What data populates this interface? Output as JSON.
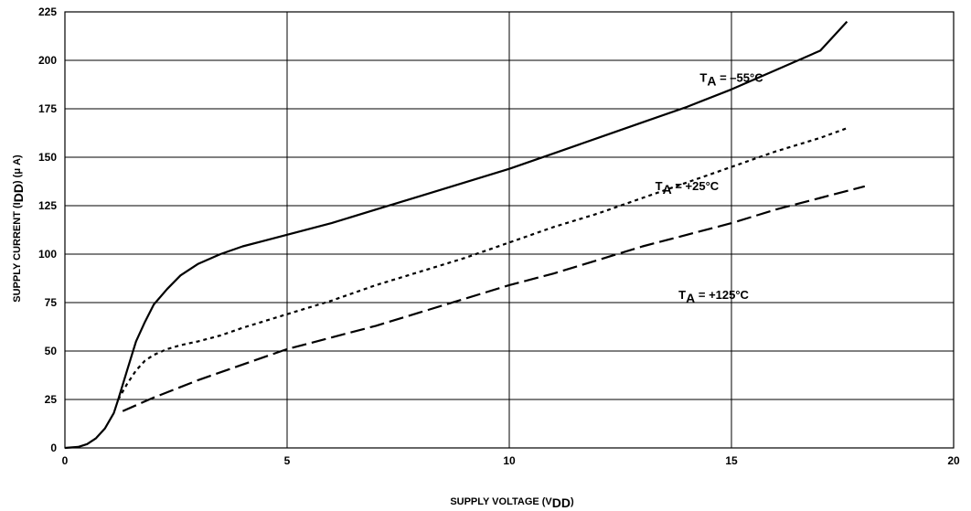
{
  "chart_data": {
    "type": "line",
    "title": "",
    "xlabel": "SUPPLY VOLTAGE (V",
    "xlabel_sub": "DD",
    "xlabel_end": ")",
    "ylabel": "SUPPLY CURRENT (I",
    "ylabel_sub": "DD",
    "ylabel_end": ") (μ A)",
    "xlim": [
      0,
      20
    ],
    "ylim": [
      0,
      225
    ],
    "xticks": [
      0,
      5,
      10,
      15,
      20
    ],
    "yticks": [
      0,
      25,
      50,
      75,
      100,
      125,
      150,
      175,
      200,
      225
    ],
    "grid": true,
    "series": [
      {
        "name": "T",
        "name_sub": "A",
        "name_end": " = –55°C",
        "style": "solid",
        "x": [
          0,
          0.3,
          0.5,
          0.7,
          0.9,
          1.0,
          1.1,
          1.2,
          1.4,
          1.6,
          1.8,
          2.0,
          2.3,
          2.6,
          3.0,
          3.5,
          4.0,
          4.5,
          5.0,
          6,
          7,
          8,
          9,
          10,
          11,
          12,
          13,
          14,
          15,
          16,
          17,
          17.6
        ],
        "y": [
          0,
          0.5,
          2,
          5,
          10,
          14,
          18,
          25,
          40,
          55,
          65,
          74,
          82,
          89,
          95,
          100,
          104,
          107,
          110,
          116,
          123,
          130,
          137,
          144,
          152,
          160,
          168,
          176,
          185,
          195,
          205,
          220
        ]
      },
      {
        "name": "T",
        "name_sub": "A",
        "name_end": " = +25°C",
        "style": "dotted",
        "x": [
          1.2,
          1.4,
          1.6,
          1.8,
          2.0,
          2.3,
          2.6,
          3.0,
          3.5,
          4,
          5,
          6,
          7,
          8,
          9,
          10,
          11,
          12,
          13,
          14,
          15,
          16,
          17,
          17.6
        ],
        "y": [
          25,
          33,
          40,
          45,
          48,
          51,
          53,
          55,
          58,
          62,
          69,
          76,
          84,
          91,
          98,
          106,
          114,
          121,
          129,
          137,
          145,
          153,
          160,
          165
        ]
      },
      {
        "name": "T",
        "name_sub": "A",
        "name_end": " = +125°C",
        "style": "dashed",
        "x": [
          1.3,
          2,
          3,
          4,
          5,
          6,
          7,
          8,
          9,
          10,
          11,
          12,
          13,
          14,
          15,
          16,
          17,
          18
        ],
        "y": [
          19,
          26,
          35,
          43,
          51,
          57,
          63,
          70,
          77,
          84,
          90,
          97,
          104,
          110,
          116,
          123,
          129,
          135
        ]
      }
    ]
  }
}
